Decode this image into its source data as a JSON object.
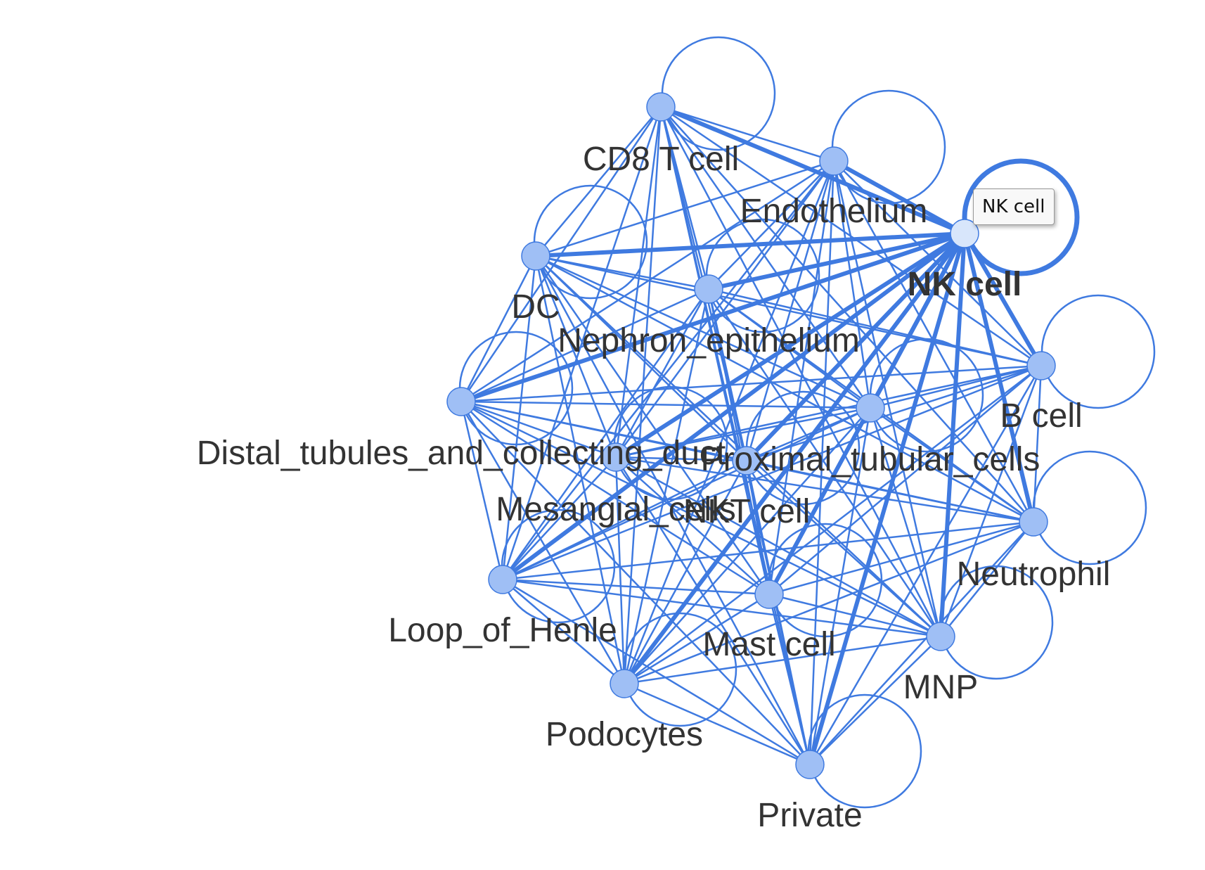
{
  "graph": {
    "highlighted_node": "NK cell",
    "tooltip": "NK cell",
    "edge_color": "#3f7ae0",
    "node_fill": "#9fbff5",
    "active_node_fill": "#d8e6fb",
    "nodes": [
      {
        "id": "cd8",
        "label": "CD8 T cell"
      },
      {
        "id": "endo",
        "label": "Endothelium"
      },
      {
        "id": "nk",
        "label": "NK cell"
      },
      {
        "id": "dc",
        "label": "DC"
      },
      {
        "id": "neph",
        "label": "Nephron_epithelium"
      },
      {
        "id": "bcell",
        "label": "B cell"
      },
      {
        "id": "distal",
        "label": "Distal_tubules_and_collecting_duct"
      },
      {
        "id": "prox",
        "label": "Proximal_tubular_cells"
      },
      {
        "id": "mes",
        "label": "Mesangial_cells"
      },
      {
        "id": "nkt",
        "label": "NKT cell"
      },
      {
        "id": "neut",
        "label": "Neutrophil"
      },
      {
        "id": "loop",
        "label": "Loop_of_Henle"
      },
      {
        "id": "mast",
        "label": "Mast cell"
      },
      {
        "id": "mnp",
        "label": "MNP"
      },
      {
        "id": "podo",
        "label": "Podocytes"
      },
      {
        "id": "priv",
        "label": "Private"
      }
    ]
  }
}
